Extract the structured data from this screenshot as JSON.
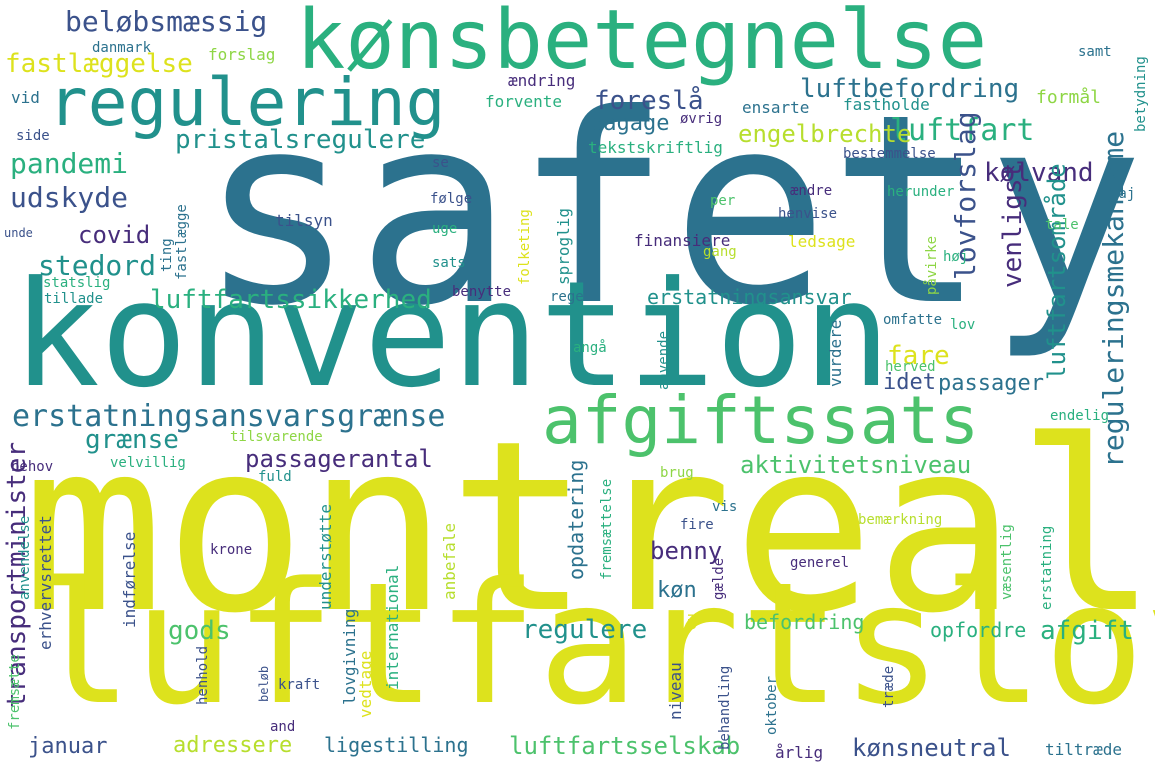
{
  "palette": {
    "lime": "#dde21d",
    "yellow_green": "#b7de2e",
    "light_green": "#8ed645",
    "green": "#4cc26c",
    "teal_green": "#2ab07f",
    "teal": "#21918c",
    "blue_teal": "#2c728e",
    "blue": "#3b528b",
    "indigo": "#472d7b",
    "purple": "#440154"
  },
  "words": [
    {
      "text": "safety",
      "color": "#2c728e"
    },
    {
      "text": "montreal",
      "color": "#dde21d"
    },
    {
      "text": "luftfartslov",
      "color": "#dde21d"
    },
    {
      "text": "konvention",
      "color": "#21918c"
    },
    {
      "text": "kønsbetegnelse",
      "color": "#2ab07f"
    },
    {
      "text": "regulering",
      "color": "#21918c"
    },
    {
      "text": "afgiftssats",
      "color": "#4cc26c"
    },
    {
      "text": "erstatningsansvarsgrænse",
      "color": "#2c728e"
    },
    {
      "text": "beløbsmæssig",
      "color": "#3b528b"
    },
    {
      "text": "fastlæggelse",
      "color": "#dde21d"
    },
    {
      "text": "foreslå",
      "color": "#3b528b"
    },
    {
      "text": "luftbefordring",
      "color": "#2c728e"
    },
    {
      "text": "pristalsregulere",
      "color": "#21918c"
    },
    {
      "text": "bagage",
      "color": "#2c728e"
    },
    {
      "text": "luftfart",
      "color": "#2ab07f"
    },
    {
      "text": "engelbrechte",
      "color": "#b7de2e"
    },
    {
      "text": "pandemi",
      "color": "#2ab07f"
    },
    {
      "text": "udskyde",
      "color": "#3b528b"
    },
    {
      "text": "covid",
      "color": "#472d7b"
    },
    {
      "text": "stedord",
      "color": "#21918c"
    },
    {
      "text": "kølvand",
      "color": "#472d7b"
    },
    {
      "text": "luftfartssikkerhed",
      "color": "#2ab07f"
    },
    {
      "text": "erstatningsansvar",
      "color": "#21918c"
    },
    {
      "text": "fare",
      "color": "#dde21d"
    },
    {
      "text": "idet",
      "color": "#3b528b"
    },
    {
      "text": "passager",
      "color": "#2c728e"
    },
    {
      "text": "grænse",
      "color": "#21918c"
    },
    {
      "text": "passagerantal",
      "color": "#472d7b"
    },
    {
      "text": "aktivitetsniveau",
      "color": "#4cc26c"
    },
    {
      "text": "benny",
      "color": "#472d7b"
    },
    {
      "text": "køn",
      "color": "#2c728e"
    },
    {
      "text": "gods",
      "color": "#4cc26c"
    },
    {
      "text": "regulere",
      "color": "#21918c"
    },
    {
      "text": "afgift",
      "color": "#2ab07f"
    },
    {
      "text": "befordring",
      "color": "#4cc26c"
    },
    {
      "text": "opfordre",
      "color": "#2ab07f"
    },
    {
      "text": "januar",
      "color": "#3b528b"
    },
    {
      "text": "adressere",
      "color": "#b7de2e"
    },
    {
      "text": "ligestilling",
      "color": "#2c728e"
    },
    {
      "text": "luftfartsselskab",
      "color": "#4cc26c"
    },
    {
      "text": "årlig",
      "color": "#472d7b"
    },
    {
      "text": "kønsneutral",
      "color": "#3b528b"
    },
    {
      "text": "tiltræde",
      "color": "#2c728e"
    },
    {
      "text": "transportminister",
      "color": "#472d7b"
    },
    {
      "text": "lovforslag",
      "color": "#3b528b"
    },
    {
      "text": "venligst",
      "color": "#472d7b"
    },
    {
      "text": "luftfartsområde",
      "color": "#21918c"
    },
    {
      "text": "reguleringsmekanisme",
      "color": "#2c728e"
    },
    {
      "text": "danmark",
      "color": "#2c728e"
    },
    {
      "text": "forslag",
      "color": "#8ed645"
    },
    {
      "text": "ændring",
      "color": "#472d7b"
    },
    {
      "text": "forvente",
      "color": "#2ab07f"
    },
    {
      "text": "samt",
      "color": "#2c728e"
    },
    {
      "text": "betydning",
      "color": "#21918c"
    },
    {
      "text": "vid",
      "color": "#2c728e"
    },
    {
      "text": "øvrig",
      "color": "#472d7b"
    },
    {
      "text": "ensarte",
      "color": "#2c728e"
    },
    {
      "text": "fastholde",
      "color": "#21918c"
    },
    {
      "text": "formål",
      "color": "#8ed645"
    },
    {
      "text": "side",
      "color": "#3b528b"
    },
    {
      "text": "tekstskriftlig",
      "color": "#2ab07f"
    },
    {
      "text": "bestemmelse",
      "color": "#3b528b"
    },
    {
      "text": "se",
      "color": "#3b528b"
    },
    {
      "text": "følge",
      "color": "#3b528b"
    },
    {
      "text": "ændre",
      "color": "#472d7b"
    },
    {
      "text": "herunder",
      "color": "#2ab07f"
    },
    {
      "text": "maj",
      "color": "#2c728e"
    },
    {
      "text": "tilsyn",
      "color": "#3b528b"
    },
    {
      "text": "per",
      "color": "#4cc26c"
    },
    {
      "text": "henvise",
      "color": "#3b528b"
    },
    {
      "text": "tale",
      "color": "#4cc26c"
    },
    {
      "text": "uge",
      "color": "#2ab07f"
    },
    {
      "text": "unde",
      "color": "#3b528b"
    },
    {
      "text": "finansiere",
      "color": "#472d7b"
    },
    {
      "text": "ledsage",
      "color": "#dde21d"
    },
    {
      "text": "høj",
      "color": "#2ab07f"
    },
    {
      "text": "gang",
      "color": "#b7de2e"
    },
    {
      "text": "sats",
      "color": "#21918c"
    },
    {
      "text": "statslig",
      "color": "#2ab07f"
    },
    {
      "text": "tillade",
      "color": "#21918c"
    },
    {
      "text": "benytte",
      "color": "#472d7b"
    },
    {
      "text": "regel",
      "color": "#2c728e"
    },
    {
      "text": "lov",
      "color": "#2ab07f"
    },
    {
      "text": "omfatte",
      "color": "#2c728e"
    },
    {
      "text": "angå",
      "color": "#2ab07f"
    },
    {
      "text": "herved",
      "color": "#4cc26c"
    },
    {
      "text": "endelig",
      "color": "#2ab07f"
    },
    {
      "text": "tilsvarende",
      "color": "#8ed645"
    },
    {
      "text": "behov",
      "color": "#472d7b"
    },
    {
      "text": "velvillig",
      "color": "#2ab07f"
    },
    {
      "text": "fuld",
      "color": "#21918c"
    },
    {
      "text": "brug",
      "color": "#8ed645"
    },
    {
      "text": "vis",
      "color": "#2c728e"
    },
    {
      "text": "fire",
      "color": "#3b528b"
    },
    {
      "text": "bemærkning",
      "color": "#b7de2e"
    },
    {
      "text": "krone",
      "color": "#472d7b"
    },
    {
      "text": "generel",
      "color": "#472d7b"
    },
    {
      "text": "opdatering",
      "color": "#2c728e"
    },
    {
      "text": "kraft",
      "color": "#3b528b"
    },
    {
      "text": "and",
      "color": "#472d7b"
    },
    {
      "text": "fastlægge",
      "color": "#2c728e"
    },
    {
      "text": "ting",
      "color": "#2c728e"
    },
    {
      "text": "folketing",
      "color": "#dde21d"
    },
    {
      "text": "sproglig",
      "color": "#21918c"
    },
    {
      "text": "påvirke",
      "color": "#8ed645"
    },
    {
      "text": "vurdere",
      "color": "#2c728e"
    },
    {
      "text": "anvende",
      "color": "#21918c"
    },
    {
      "text": "anvendelse",
      "color": "#21918c"
    },
    {
      "text": "erhvervsrettet",
      "color": "#3b528b"
    },
    {
      "text": "indførelse",
      "color": "#3b528b"
    },
    {
      "text": "understøtte",
      "color": "#21918c"
    },
    {
      "text": "lovgivning",
      "color": "#2c728e"
    },
    {
      "text": "international",
      "color": "#2ab07f"
    },
    {
      "text": "anbefale",
      "color": "#b7de2e"
    },
    {
      "text": "fremsættelse",
      "color": "#2ab07f"
    },
    {
      "text": "gælde",
      "color": "#472d7b"
    },
    {
      "text": "eu",
      "color": "#dde21d"
    },
    {
      "text": "niveau",
      "color": "#3b528b"
    },
    {
      "text": "behandling",
      "color": "#3b528b"
    },
    {
      "text": "oktober",
      "color": "#2c728e"
    },
    {
      "text": "træde",
      "color": "#3b528b"
    },
    {
      "text": "væsentlig",
      "color": "#4cc26c"
    },
    {
      "text": "erstatning",
      "color": "#2ab07f"
    },
    {
      "text": "fremsætte",
      "color": "#4cc26c"
    },
    {
      "text": "henhold",
      "color": "#3b528b"
    },
    {
      "text": "beløb",
      "color": "#3b528b"
    },
    {
      "text": "vedtage",
      "color": "#dde21d"
    }
  ]
}
